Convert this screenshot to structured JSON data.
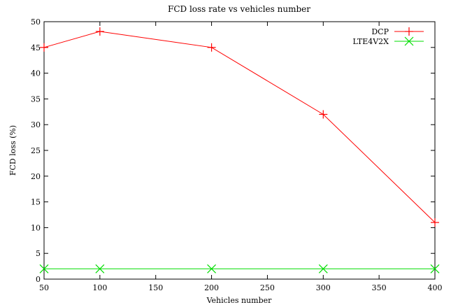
{
  "chart_data": {
    "type": "line",
    "title": "FCD loss rate vs vehicles number",
    "xlabel": "Vehicles number",
    "ylabel": "FCD loss (%)",
    "xlim": [
      50,
      400
    ],
    "ylim": [
      0,
      50
    ],
    "xticks": [
      50,
      100,
      150,
      200,
      250,
      300,
      350,
      400
    ],
    "yticks": [
      0,
      5,
      10,
      15,
      20,
      25,
      30,
      35,
      40,
      45,
      50
    ],
    "grid": false,
    "legend_position": "top-right",
    "series": [
      {
        "name": "DCP",
        "color": "#ff0000",
        "marker": "plus",
        "x": [
          50,
          100,
          200,
          300,
          400
        ],
        "y": [
          45,
          48.1,
          45,
          32,
          11
        ]
      },
      {
        "name": "LTE4V2X",
        "color": "#00dd00",
        "marker": "cross",
        "x": [
          50,
          100,
          200,
          300,
          400
        ],
        "y": [
          2,
          2,
          2,
          2,
          2
        ]
      }
    ]
  }
}
